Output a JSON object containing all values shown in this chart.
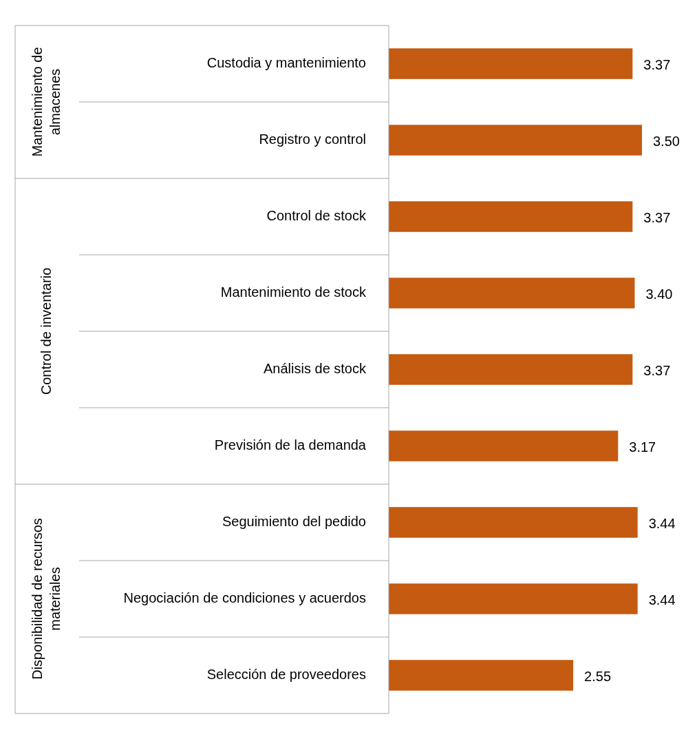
{
  "chart_data": {
    "type": "bar",
    "orientation": "horizontal",
    "categories": [
      "Custodia y mantenimiento",
      "Registro y control",
      "Control de stock",
      "Mantenimiento de stock",
      "Análisis de stock",
      "Previsión de la demanda",
      "Seguimiento del pedido",
      "Negociación de condiciones y acuerdos",
      "Selección de proveedores"
    ],
    "values": [
      3.37,
      3.5,
      3.37,
      3.4,
      3.37,
      3.17,
      3.44,
      3.44,
      2.55
    ],
    "value_labels": [
      "3.37",
      "3.50",
      "3.37",
      "3.40",
      "3.37",
      "3.17",
      "3.44",
      "3.44",
      "2.55"
    ],
    "color": "#c55a11",
    "legend": false,
    "annotations": [
      "Mantenimiento de almacenes",
      "Control de inventario",
      "Disponibilidad de recursos materiales"
    ]
  }
}
